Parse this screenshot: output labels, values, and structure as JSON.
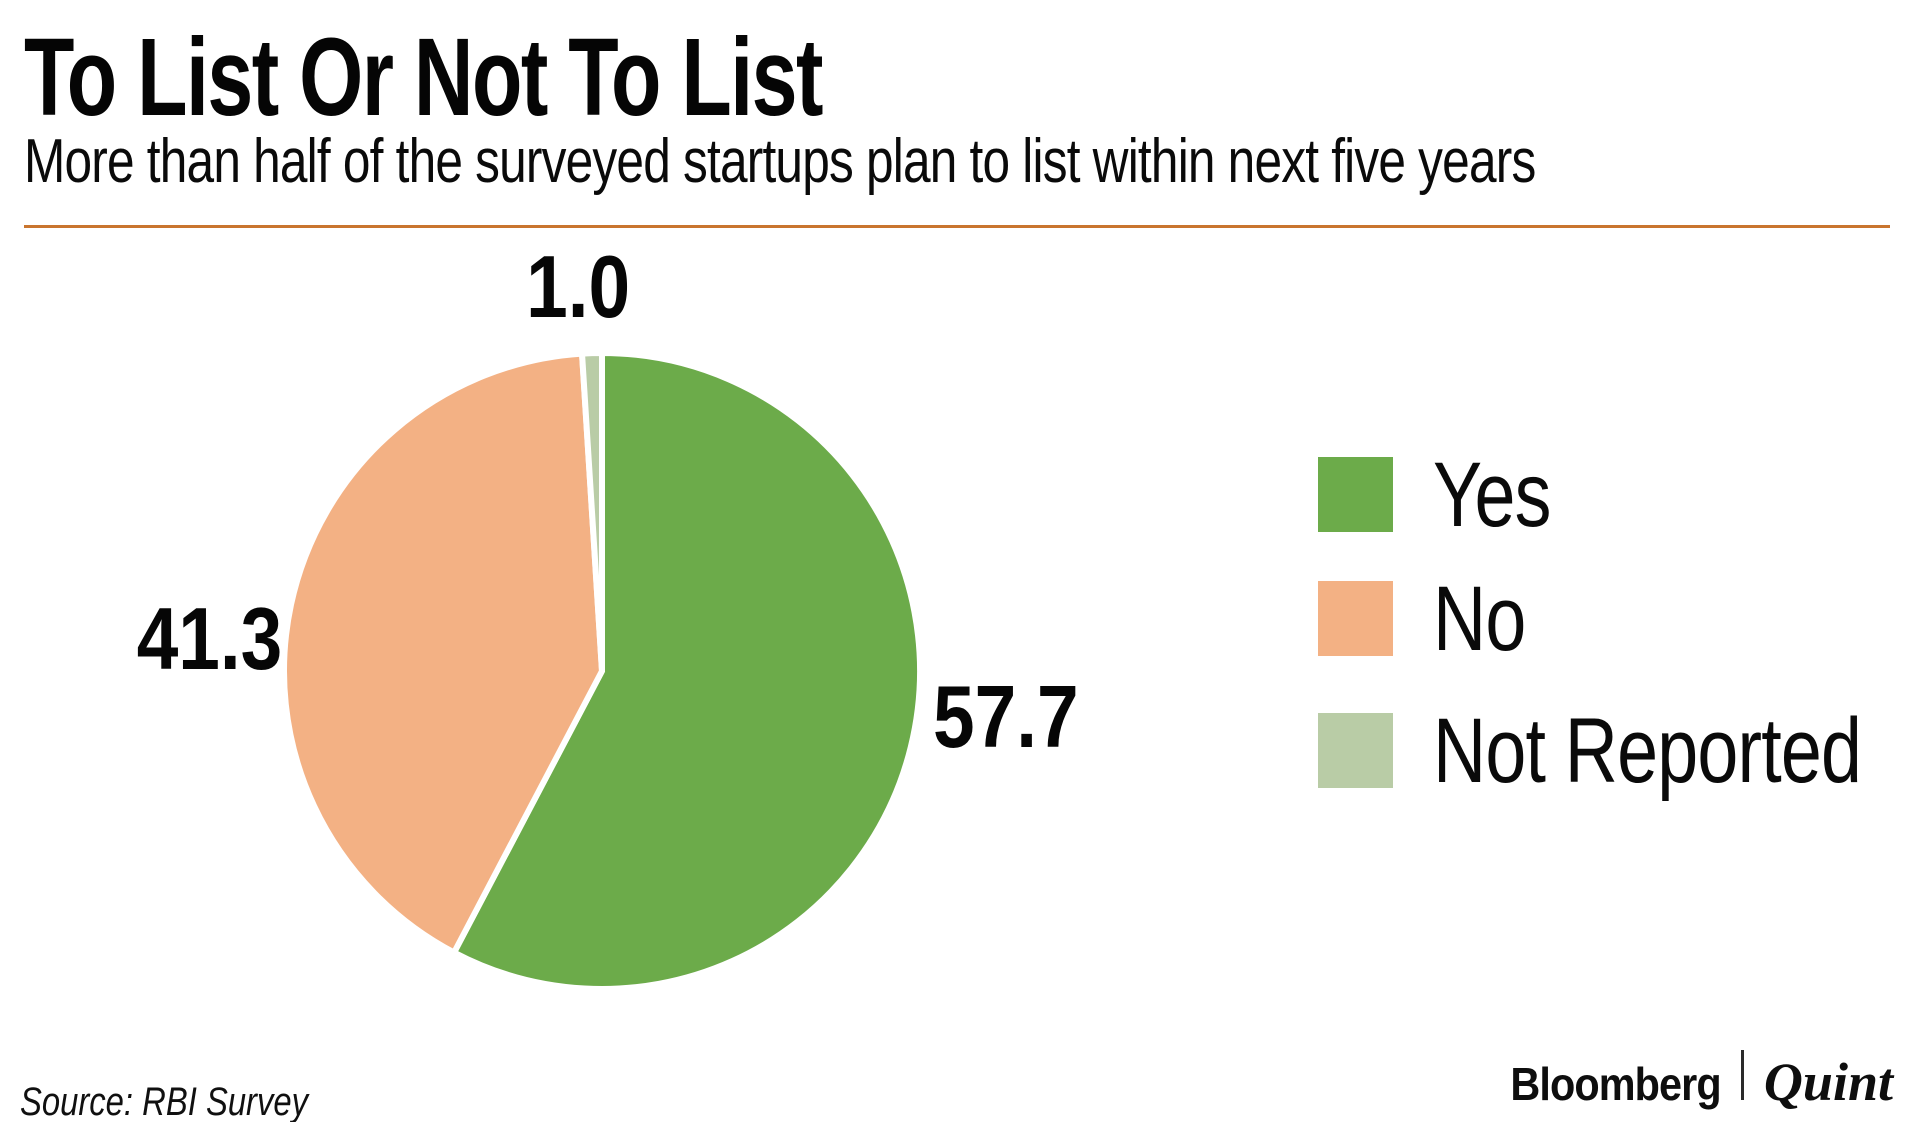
{
  "header": {
    "title": "To List Or Not To List",
    "subtitle": "More than half of the surveyed startups plan to list within next five years"
  },
  "chart_data": {
    "type": "pie",
    "title": "To List Or Not To List",
    "unit": "percent",
    "start_angle_deg": 0,
    "direction": "clockwise",
    "legend_position": "right",
    "slices": [
      {
        "label": "Yes",
        "value": 57.7,
        "value_label": "57.7",
        "color": "#6cab4a"
      },
      {
        "label": "No",
        "value": 41.3,
        "value_label": "41.3",
        "color": "#f3b184"
      },
      {
        "label": "Not Reported",
        "value": 1.0,
        "value_label": "1.0",
        "color": "#b9cca6"
      }
    ],
    "slice_gap_color": "#ffffff"
  },
  "footer": {
    "source": "Source: RBI Survey",
    "brand_bloomberg": "Bloomberg",
    "brand_quint": "Quint"
  },
  "colors": {
    "rule": "#c9752f",
    "background": "#ffffff",
    "text": "#0a0a0a"
  }
}
